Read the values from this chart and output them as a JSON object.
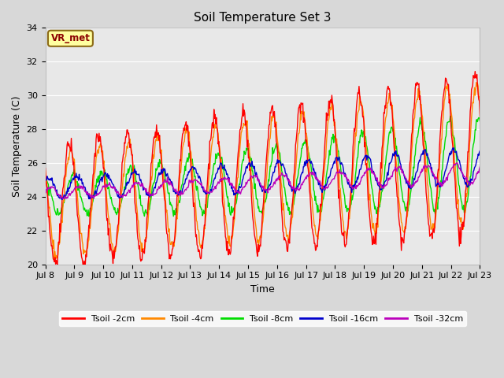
{
  "title": "Soil Temperature Set 3",
  "xlabel": "Time",
  "ylabel": "Soil Temperature (C)",
  "ylim": [
    20,
    34
  ],
  "xlim": [
    0,
    15
  ],
  "annotation_text": "VR_met",
  "x_tick_labels": [
    "Jul 8",
    "Jul 9",
    "Jul 10",
    "Jul 11",
    "Jul 12",
    "Jul 13",
    "Jul 14",
    "Jul 15",
    "Jul 16",
    "Jul 17",
    "Jul 18",
    "Jul 19",
    "Jul 20",
    "Jul 21",
    "Jul 22",
    "Jul 23"
  ],
  "legend_labels": [
    "Tsoil -2cm",
    "Tsoil -4cm",
    "Tsoil -8cm",
    "Tsoil -16cm",
    "Tsoil -32cm"
  ],
  "line_colors": [
    "#ff0000",
    "#ff8800",
    "#00dd00",
    "#0000cc",
    "#bb00bb"
  ],
  "fig_facecolor": "#d8d8d8",
  "ax_facecolor": "#e8e8e8",
  "grid_color": "#ffffff",
  "title_fontsize": 11,
  "axis_label_fontsize": 9,
  "tick_fontsize": 8
}
